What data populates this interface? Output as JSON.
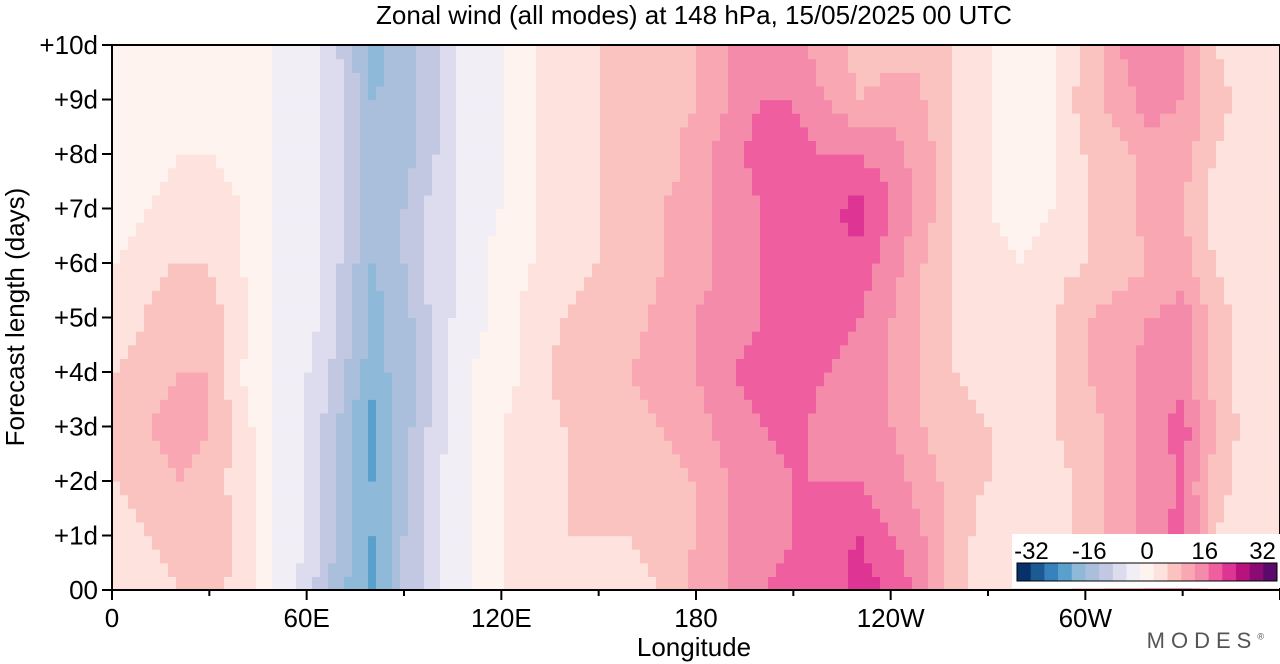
{
  "chart_data": {
    "type": "heatmap",
    "title": "Zonal wind (all modes) at 148 hPa,  15/05/2025  00 UTC",
    "xlabel": "Longitude",
    "ylabel": "Forecast length (days)",
    "x_ticks": [
      "0",
      "60E",
      "120E",
      "180",
      "120W",
      "60W"
    ],
    "x_tick_values": [
      0,
      60,
      120,
      180,
      240,
      300
    ],
    "x_range": [
      0,
      360
    ],
    "y_ticks": [
      "00",
      "+1d",
      "+2d",
      "+3d",
      "+4d",
      "+5d",
      "+6d",
      "+7d",
      "+8d",
      "+9d",
      "+10d"
    ],
    "y_range": [
      0,
      10
    ],
    "colorbar": {
      "labels": [
        "-32",
        "-16",
        "0",
        "16",
        "32"
      ],
      "label_values": [
        -32,
        -16,
        0,
        16,
        32
      ],
      "range": [
        -36,
        36
      ],
      "step": 4,
      "colors": [
        "#08306b",
        "#1c5a92",
        "#3782bd",
        "#5aa0cd",
        "#8fb9d9",
        "#a9bfdc",
        "#c2c7e2",
        "#dcdcee",
        "#f1eef6",
        "#fef3ef",
        "#fde2dd",
        "#fbc3c0",
        "#f9a7b2",
        "#f58bab",
        "#ef5fa0",
        "#de3494",
        "#b8127d",
        "#8a0b74",
        "#5b0a6b"
      ]
    },
    "field": {
      "longitude_step": 10,
      "day_step": 1,
      "values": [
        [
          4,
          6,
          8,
          10,
          6,
          0,
          -6,
          -14,
          -22,
          -12,
          -4,
          0,
          4,
          6,
          8,
          6,
          6,
          8,
          14,
          16,
          20,
          22,
          20,
          26,
          24,
          18,
          10,
          6,
          4,
          6,
          10,
          14,
          16,
          20,
          6,
          4,
          4
        ],
        [
          6,
          8,
          10,
          12,
          6,
          0,
          -4,
          -14,
          -20,
          -12,
          -4,
          0,
          4,
          6,
          8,
          8,
          8,
          10,
          12,
          16,
          18,
          20,
          22,
          24,
          20,
          16,
          10,
          6,
          4,
          6,
          10,
          14,
          18,
          22,
          8,
          6,
          6
        ],
        [
          8,
          10,
          12,
          10,
          6,
          0,
          -4,
          -12,
          -20,
          -14,
          -4,
          0,
          4,
          6,
          8,
          10,
          8,
          10,
          12,
          16,
          18,
          20,
          20,
          20,
          18,
          14,
          10,
          8,
          6,
          6,
          10,
          14,
          18,
          20,
          10,
          6,
          8
        ],
        [
          8,
          12,
          14,
          12,
          6,
          0,
          -4,
          -12,
          -22,
          -14,
          -6,
          0,
          4,
          6,
          8,
          8,
          10,
          12,
          14,
          18,
          20,
          22,
          18,
          18,
          16,
          12,
          10,
          8,
          6,
          8,
          10,
          14,
          18,
          22,
          12,
          6,
          8
        ],
        [
          8,
          10,
          12,
          12,
          4,
          0,
          -4,
          -10,
          -18,
          -14,
          -6,
          0,
          2,
          6,
          10,
          12,
          12,
          14,
          16,
          20,
          22,
          22,
          20,
          18,
          16,
          12,
          8,
          6,
          6,
          8,
          12,
          14,
          18,
          18,
          10,
          6,
          8
        ],
        [
          6,
          8,
          12,
          10,
          6,
          0,
          -2,
          -8,
          -18,
          -14,
          -6,
          -2,
          2,
          6,
          8,
          10,
          10,
          14,
          16,
          18,
          20,
          22,
          22,
          20,
          16,
          12,
          8,
          6,
          6,
          8,
          12,
          14,
          16,
          18,
          10,
          6,
          8
        ],
        [
          4,
          6,
          8,
          8,
          4,
          0,
          -2,
          -8,
          -16,
          -12,
          -6,
          -2,
          2,
          4,
          6,
          8,
          8,
          12,
          14,
          18,
          20,
          22,
          24,
          22,
          18,
          12,
          8,
          6,
          4,
          6,
          8,
          10,
          12,
          14,
          8,
          6,
          6
        ],
        [
          2,
          4,
          6,
          6,
          4,
          0,
          -2,
          -6,
          -14,
          -12,
          -6,
          -2,
          0,
          4,
          6,
          8,
          8,
          12,
          14,
          18,
          20,
          22,
          22,
          26,
          20,
          14,
          8,
          4,
          2,
          4,
          8,
          10,
          14,
          12,
          6,
          4,
          4
        ],
        [
          2,
          2,
          4,
          4,
          2,
          0,
          -2,
          -6,
          -14,
          -14,
          -8,
          -2,
          0,
          4,
          6,
          8,
          8,
          10,
          14,
          18,
          22,
          22,
          20,
          20,
          18,
          14,
          8,
          4,
          2,
          4,
          8,
          10,
          14,
          14,
          8,
          6,
          4
        ],
        [
          2,
          2,
          2,
          2,
          2,
          0,
          -2,
          -6,
          -16,
          -14,
          -8,
          -2,
          0,
          4,
          6,
          8,
          8,
          10,
          12,
          16,
          20,
          20,
          16,
          12,
          14,
          12,
          8,
          4,
          2,
          4,
          10,
          14,
          18,
          16,
          10,
          6,
          4
        ],
        [
          2,
          2,
          2,
          2,
          2,
          0,
          -2,
          -8,
          -18,
          -14,
          -8,
          -2,
          0,
          4,
          6,
          8,
          8,
          10,
          12,
          16,
          18,
          18,
          14,
          10,
          10,
          12,
          8,
          4,
          2,
          4,
          8,
          16,
          18,
          16,
          8,
          4,
          4
        ]
      ]
    }
  },
  "branding": {
    "logo": "MODES",
    "mark": "®"
  }
}
